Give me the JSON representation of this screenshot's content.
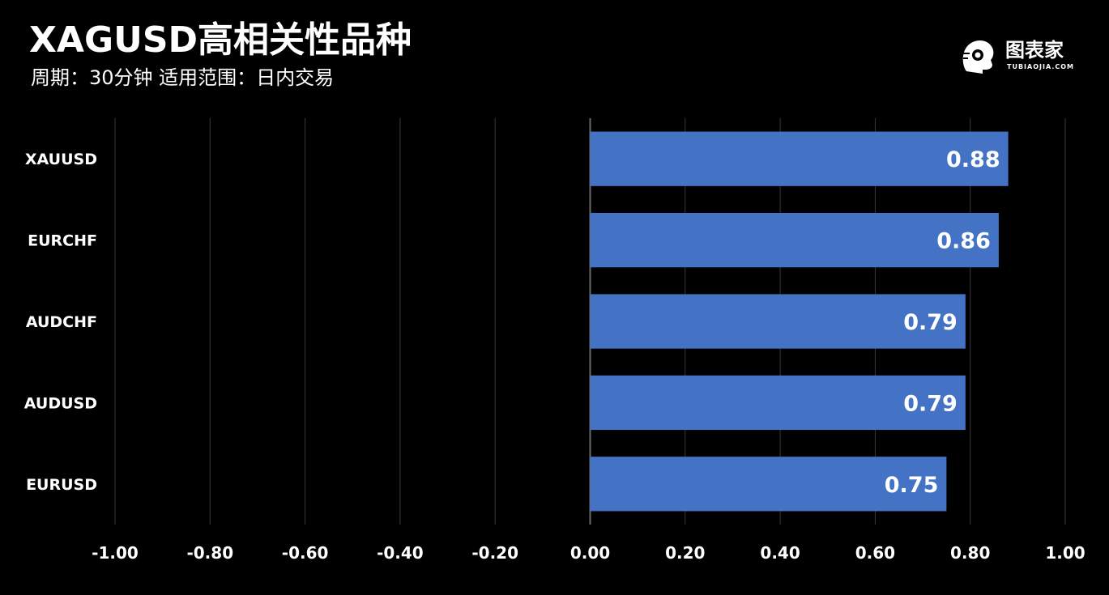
{
  "header": {
    "title": "XAGUSD高相关性品种",
    "subtitle": "周期：30分钟  适用范围：日内交易"
  },
  "logo": {
    "icon": "tubiaojia-head-logo-icon",
    "name": "图表家",
    "domain": "TUBIAOJIA.COM"
  },
  "colors": {
    "background": "#000000",
    "bar": "#4472C4",
    "gridline": "#3a3a3a",
    "zero_axis": "#6a6a6a",
    "text": "#ffffff"
  },
  "chart_data": {
    "type": "bar",
    "orientation": "horizontal",
    "categories": [
      "XAUUSD",
      "EURCHF",
      "AUDCHF",
      "AUDUSD",
      "EURUSD"
    ],
    "values": [
      0.88,
      0.86,
      0.79,
      0.79,
      0.75
    ],
    "data_labels": [
      "0.88",
      "0.86",
      "0.79",
      "0.79",
      "0.75"
    ],
    "xlim": [
      -1.0,
      1.0
    ],
    "x_ticks": [
      -1.0,
      -0.8,
      -0.6,
      -0.4,
      -0.2,
      0.0,
      0.2,
      0.4,
      0.6,
      0.8,
      1.0
    ],
    "x_tick_labels": [
      "-1.00",
      "-0.80",
      "-0.60",
      "-0.40",
      "-0.20",
      "0.00",
      "0.20",
      "0.40",
      "0.60",
      "0.80",
      "1.00"
    ],
    "grid": "vertical",
    "legend": "none"
  }
}
